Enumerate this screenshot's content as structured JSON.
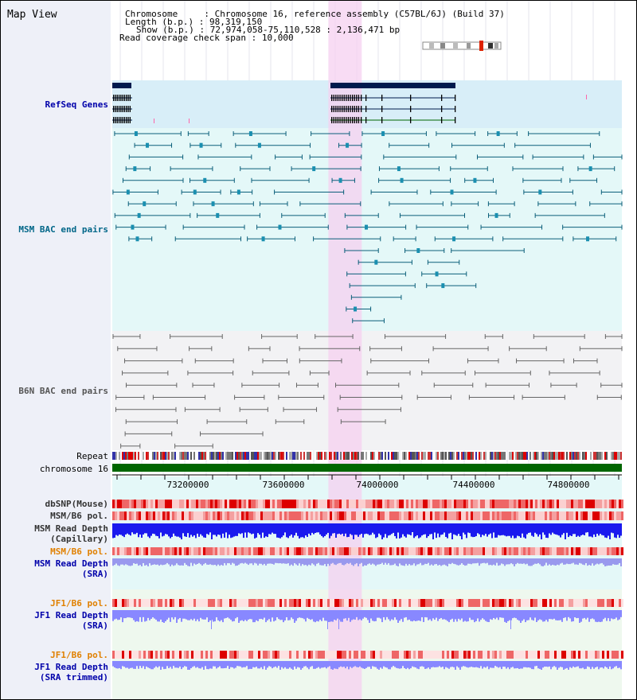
{
  "view": {
    "title": "Map View",
    "info": {
      "chromosome_key": "Chromosome",
      "chromosome_val": "Chromosome 16, reference assembly (C57BL/6J) (Build 37)",
      "length_key": "Length (b.p.)",
      "length_val": "98,319,150",
      "show_key": "Show (b.p.)",
      "show_val": "72,974,058-75,110,528 : 2,136,471 bp",
      "coverage_key": "Read coverage check span",
      "coverage_val": "10,000"
    },
    "highlight_region": [
      73880000,
      74020000
    ],
    "range": [
      72974058,
      75110528
    ]
  },
  "tracks": {
    "refseq": {
      "label": "RefSeq Genes",
      "color": "#0000aa"
    },
    "msm_bac": {
      "label": "MSM BAC end pairs",
      "color": "#006688"
    },
    "b6n_bac": {
      "label": "B6N BAC end pairs",
      "color": "#555555"
    },
    "repeat": {
      "label": "Repeat"
    },
    "chromosome": {
      "label": "chromosome 16"
    },
    "dbsnp": {
      "label": "dbSNP(Mouse)"
    },
    "msm_b6_pol": {
      "label": "MSM/B6 pol."
    },
    "msm_depth_cap": {
      "label_line1": "MSM Read Depth",
      "label_line2": "(Capillary)"
    },
    "msm_b6_pol2": {
      "label": "MSM/B6 pol.",
      "color": "#e08000"
    },
    "msm_depth_sra": {
      "label_line1": "MSM Read Depth",
      "label_line2": "(SRA)",
      "color": "#0000aa"
    },
    "jf1_b6_pol": {
      "label": "JF1/B6 pol.",
      "color": "#e08000"
    },
    "jf1_depth_sra": {
      "label_line1": "JF1 Read Depth",
      "label_line2": "(SRA)",
      "color": "#0000aa"
    },
    "jf1_b6_pol2": {
      "label": "JF1/B6 pol.",
      "color": "#e08000"
    },
    "jf1_depth_trim": {
      "label_line1": "JF1 Read Depth",
      "label_line2": "(SRA trimmed)",
      "color": "#0000aa"
    }
  },
  "axis": {
    "ticks": [
      "73200000",
      "73600000",
      "74000000",
      "74400000",
      "74800000"
    ]
  },
  "colors": {
    "highlight": "#f5d0f0",
    "refseq_bg": "#d8eef8",
    "msm_bg": "#e4f8f8",
    "b6n_bg": "#f2f2f4",
    "lower_bg": "#e4f8f8",
    "chromosome_bar": "#006600",
    "depth_blue": "#1a1aee",
    "depth_light": "#8888ff"
  }
}
